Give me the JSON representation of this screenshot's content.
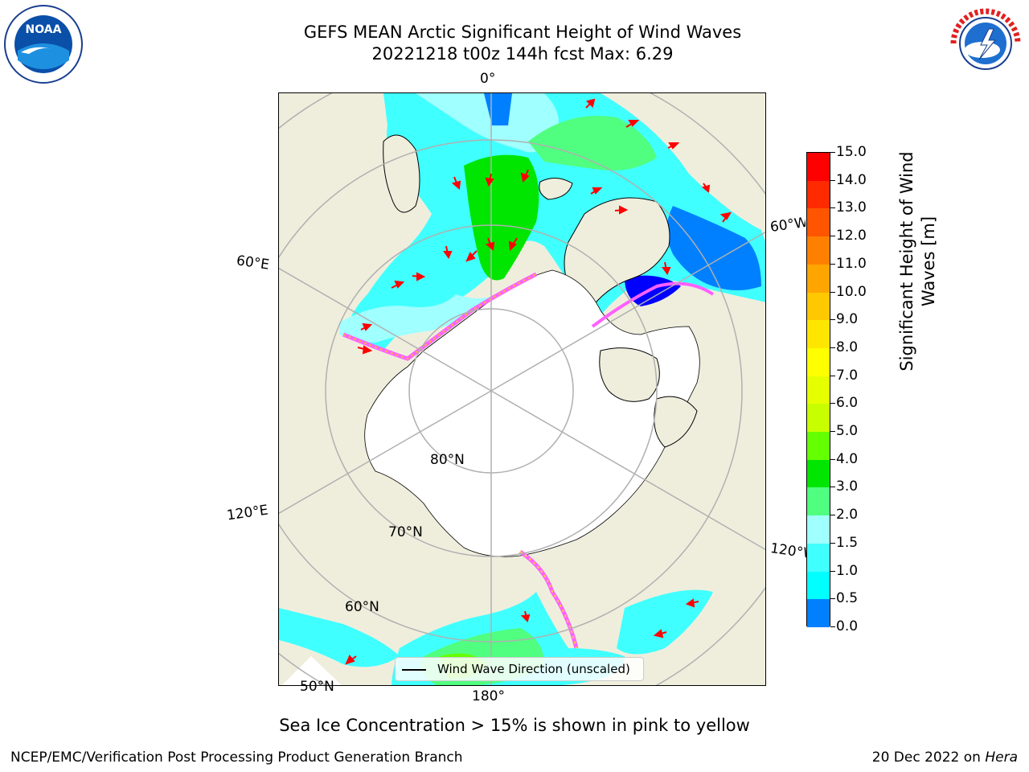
{
  "header": {
    "title_line1": "GEFS MEAN Arctic Significant Height of Wind Waves",
    "title_line2": "20221218 t00z 144h fcst   Max: 6.29"
  },
  "logos": {
    "left": {
      "icon": "noaa-logo",
      "text": "NOAA"
    },
    "right": {
      "icon": "nws-logo",
      "text": "NATIONAL WEATHER SERVICE"
    }
  },
  "map": {
    "labels": {
      "lon_0": "0°",
      "lon_60e": "60°E",
      "lon_120e": "120°E",
      "lon_180": "180°",
      "lon_120w": "120°W",
      "lon_60w": "60°W",
      "lat_80": "80°N",
      "lat_70": "70°N",
      "lat_60": "60°N",
      "lat_50": "50°N"
    },
    "colors": {
      "land": "#efeedd",
      "ice": "#ffffff",
      "grid": "#b0b0b0",
      "arrow": "#ff0000"
    }
  },
  "legend": {
    "label": "Wind Wave Direction (unscaled)"
  },
  "colorbar": {
    "label": "Significant Height of Wind Waves [m]",
    "ticks": [
      "15.0",
      "14.0",
      "13.0",
      "12.0",
      "11.0",
      "10.0",
      "9.0",
      "8.0",
      "7.0",
      "6.0",
      "5.0",
      "4.0",
      "3.0",
      "2.0",
      "1.5",
      "1.0",
      "0.5",
      "0.0"
    ],
    "colors": [
      "#ff0000",
      "#ff2a00",
      "#ff5500",
      "#ff8000",
      "#ffa500",
      "#ffc800",
      "#ffe600",
      "#ffff00",
      "#e6ff00",
      "#c8ff00",
      "#64ff00",
      "#00e600",
      "#50ff80",
      "#a0ffff",
      "#40ffff",
      "#00ffff",
      "#0080ff",
      "#0000ff"
    ]
  },
  "caption": "Sea Ice Concentration > 15% is shown in pink to yellow",
  "footer": {
    "left": "NCEP/EMC/Verification Post Processing Product Generation Branch",
    "right_prefix": "20 Dec 2022 on",
    "right_host": "Hera"
  }
}
